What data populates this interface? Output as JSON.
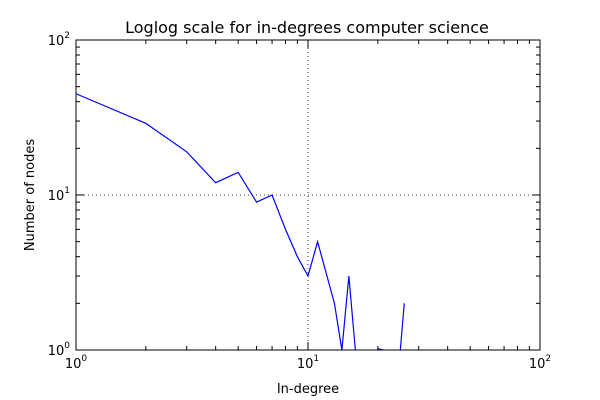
{
  "chart_data": {
    "type": "line",
    "title": "Loglog scale for in-degrees computer science",
    "xlabel": "In-degree",
    "ylabel": "Number of nodes",
    "xscale": "log",
    "yscale": "log",
    "xlim": [
      1,
      100
    ],
    "ylim": [
      1,
      100
    ],
    "x_ticks": [
      1,
      10,
      100
    ],
    "y_ticks": [
      1,
      10,
      100
    ],
    "grid": "dotted at major ticks",
    "series": [
      {
        "color": "#0000ff",
        "x": [
          1,
          2,
          3,
          4,
          5,
          6,
          7,
          8,
          9,
          10,
          11,
          13,
          14,
          15,
          16
        ],
        "y": [
          45,
          29,
          19,
          12,
          14,
          9,
          10,
          6,
          4,
          3,
          5,
          2,
          1,
          3,
          1
        ]
      },
      {
        "color": "#0000ff",
        "x": [
          20,
          21
        ],
        "y": [
          1.02,
          1
        ]
      },
      {
        "color": "#0000ff",
        "x": [
          25,
          26
        ],
        "y": [
          1,
          2
        ]
      }
    ]
  }
}
